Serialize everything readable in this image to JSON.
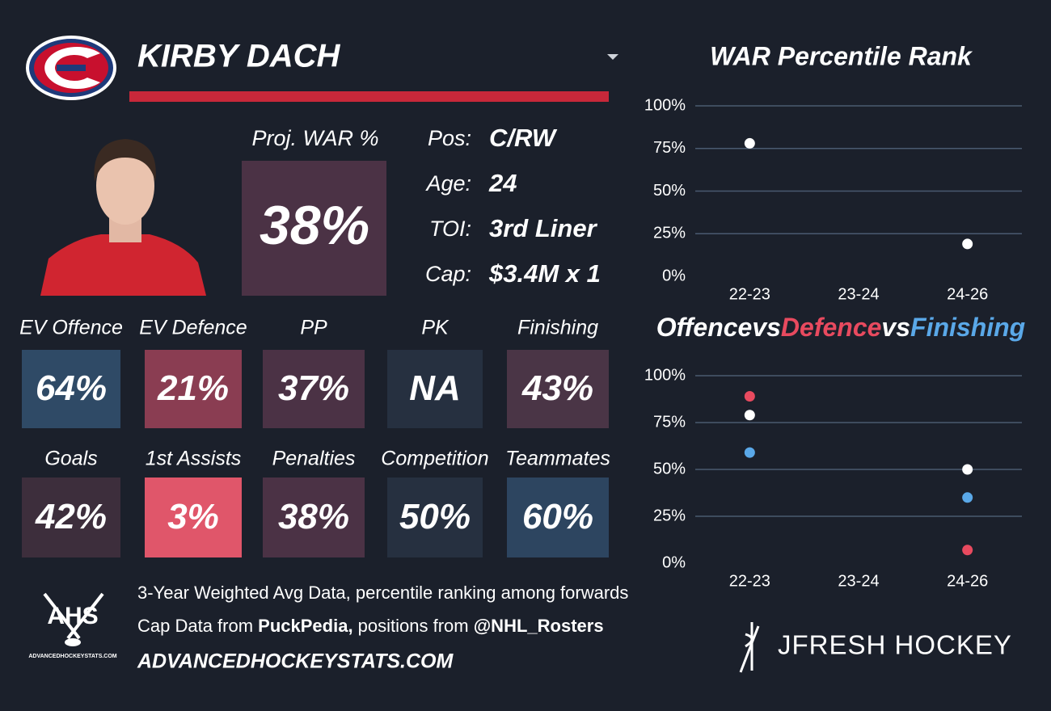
{
  "header": {
    "player": "KIRBY DACH"
  },
  "projection": {
    "label": "Proj. WAR %",
    "value": "38%",
    "color": "#4b3245"
  },
  "bio": [
    {
      "label": "Pos:",
      "value": "C/RW"
    },
    {
      "label": "Age:",
      "value": "24"
    },
    {
      "label": "TOI:",
      "value": "3rd Liner"
    },
    {
      "label": "Cap:",
      "value": "$3.4M x 1"
    }
  ],
  "tiles": [
    {
      "label": "EV Offence",
      "value": "64%",
      "color": "#2f4a66"
    },
    {
      "label": "EV Defence",
      "value": "21%",
      "color": "#8a3d52"
    },
    {
      "label": "PP",
      "value": "37%",
      "color": "#4b3245"
    },
    {
      "label": "PK",
      "value": "NA",
      "color": "#263040"
    },
    {
      "label": "Finishing",
      "value": "43%",
      "color": "#4a3546"
    },
    {
      "label": "Goals",
      "value": "42%",
      "color": "#3d2e3c"
    },
    {
      "label": "1st Assists",
      "value": "3%",
      "color": "#e0566a"
    },
    {
      "label": "Penalties",
      "value": "38%",
      "color": "#4b3245"
    },
    {
      "label": "Competition",
      "value": "50%",
      "color": "#263040"
    },
    {
      "label": "Teammates",
      "value": "60%",
      "color": "#2d4560"
    }
  ],
  "footer": {
    "logo_text": "AHS",
    "logo_caption": "ADVANCEDHOCKEYSTATS.COM",
    "lines": [
      [
        {
          "text": "3-Year Weighted Avg Data, percentile ranking among forwards",
          "bold": false
        }
      ],
      [
        {
          "text": "Cap Data from ",
          "bold": false
        },
        {
          "text": "PuckPedia,",
          "bold": true
        },
        {
          "text": " positions from ",
          "bold": false
        },
        {
          "text": "@NHL_Rosters",
          "bold": true
        }
      ]
    ],
    "url": "ADVANCEDHOCKEYSTATS.COM",
    "brand": "JFRESH HOCKEY"
  },
  "chart_data": [
    {
      "type": "scatter",
      "title": "WAR Percentile Rank",
      "categories": [
        "22-23",
        "23-24",
        "24-26"
      ],
      "series": [
        {
          "color": "#ffffff",
          "values": [
            78,
            null,
            19
          ]
        }
      ],
      "ylim": [
        0,
        100
      ],
      "yticks": [
        {
          "value": 0,
          "label": "0%"
        },
        {
          "value": 25,
          "label": "25%"
        },
        {
          "value": 50,
          "label": "50%"
        },
        {
          "value": 75,
          "label": "75%"
        },
        {
          "value": 100,
          "label": "100%"
        }
      ],
      "grid": true
    },
    {
      "type": "scatter",
      "title_separator": "vs",
      "categories": [
        "22-23",
        "23-24",
        "24-26"
      ],
      "series": [
        {
          "name": "Offence",
          "color": "#ffffff",
          "values": [
            79,
            null,
            50
          ]
        },
        {
          "name": "Defence",
          "color": "#e84a5f",
          "values": [
            89,
            null,
            7
          ]
        },
        {
          "name": "Finishing",
          "color": "#5aa8e8",
          "values": [
            59,
            null,
            35
          ]
        }
      ],
      "ylim": [
        0,
        100
      ],
      "yticks": [
        {
          "value": 0,
          "label": "0%"
        },
        {
          "value": 25,
          "label": "25%"
        },
        {
          "value": 50,
          "label": "50%"
        },
        {
          "value": 75,
          "label": "75%"
        },
        {
          "value": 100,
          "label": "100%"
        }
      ],
      "grid": true
    }
  ]
}
